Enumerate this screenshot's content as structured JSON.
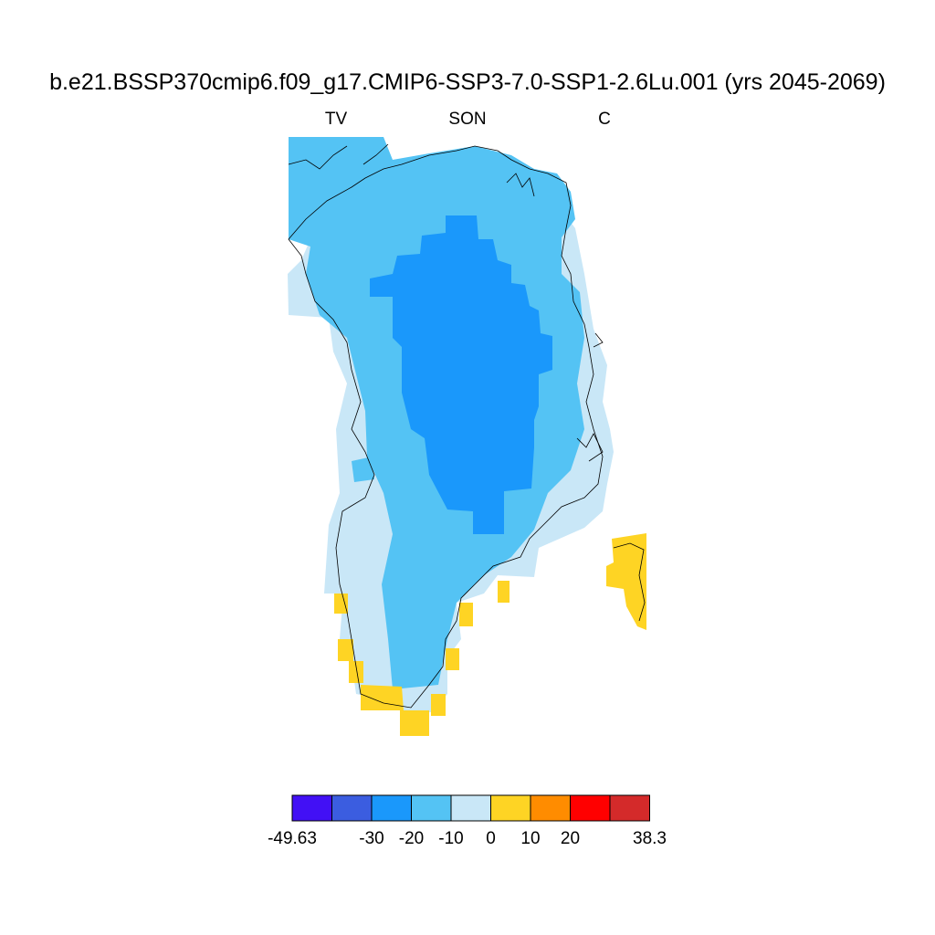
{
  "title": "b.e21.BSSP370cmip6.f09_g17.CMIP6-SSP3-7.0-SSP1-2.6Lu.001 (yrs 2045-2069)",
  "subtitle_left": "TV",
  "subtitle_center": "SON",
  "subtitle_right": "C",
  "colorbar": {
    "boundaries": [
      -49.63,
      -40,
      -30,
      -20,
      -10,
      0,
      10,
      20,
      30,
      38.3
    ],
    "colors": [
      "#4210f5",
      "#3b5de0",
      "#1a98fb",
      "#54c3f4",
      "#c9e7f7",
      "#fed424",
      "#ff8c00",
      "#ff0000",
      "#d42a2a"
    ],
    "tick_labels": [
      "-49.63",
      "-30",
      "-20",
      "-10",
      "0",
      "10",
      "20",
      "38.3"
    ]
  },
  "map_colors": {
    "strong_cooling": "#1a98fb",
    "moderate_cooling": "#54c3f4",
    "slight_cooling": "#c9e7f7",
    "slight_warming": "#fed424",
    "coastline": "#000000"
  }
}
